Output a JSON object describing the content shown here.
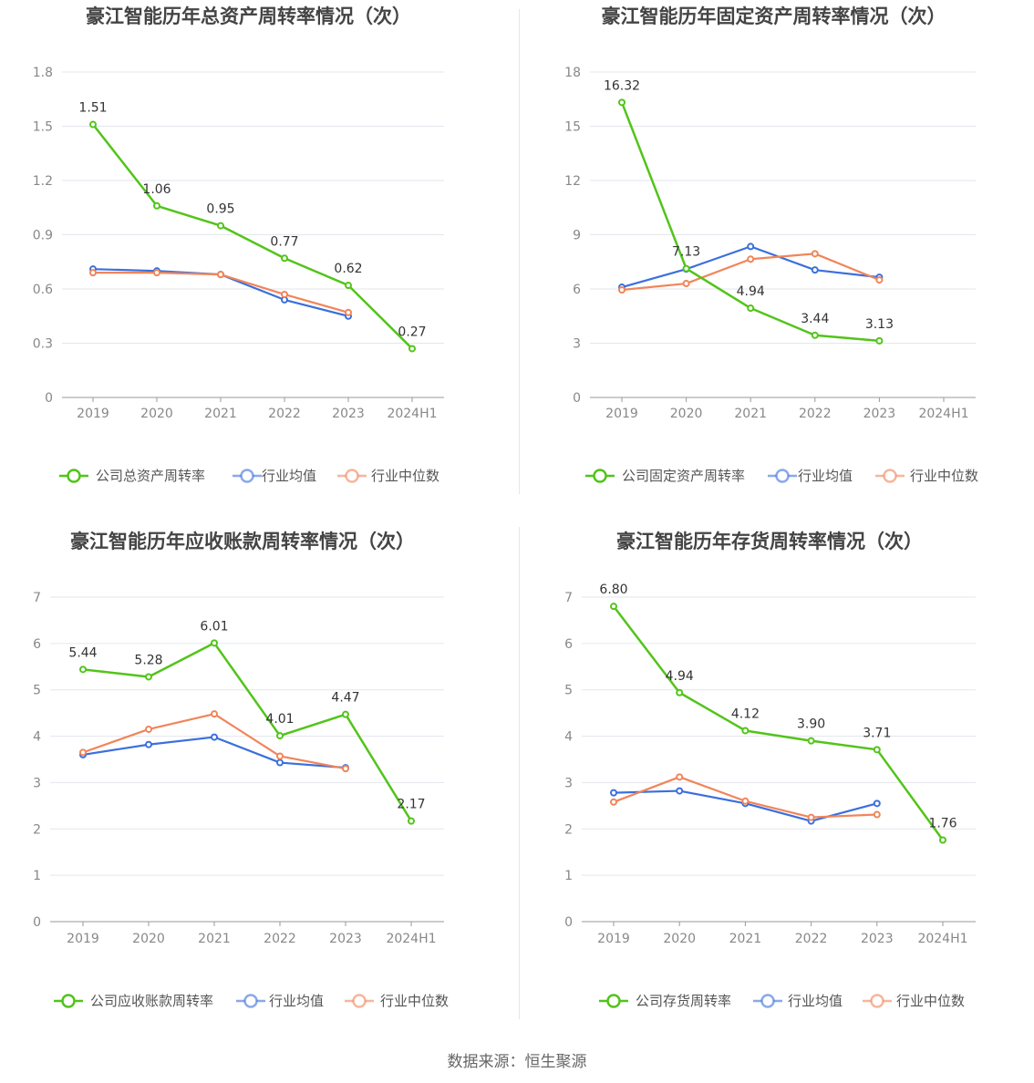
{
  "source_label": "数据来源：恒生聚源",
  "colors": {
    "company": "#52c41a",
    "avg": "#3b6fdc",
    "median": "#f0855a"
  },
  "chart_data": [
    {
      "type": "line",
      "title": "豪江智能历年总资产周转率情况（次）",
      "categories": [
        "2019",
        "2020",
        "2021",
        "2022",
        "2023",
        "2024H1"
      ],
      "ylim": [
        0,
        1.8
      ],
      "yticks": [
        "0",
        "0.3",
        "0.6",
        "0.9",
        "1.2",
        "1.5",
        "1.8"
      ],
      "series": [
        {
          "name": "公司总资产周转率",
          "key": "company",
          "values": [
            1.51,
            1.06,
            0.95,
            0.77,
            0.62,
            0.27
          ],
          "labels": [
            "1.51",
            "1.06",
            "0.95",
            "0.77",
            "0.62",
            "0.27"
          ]
        },
        {
          "name": "行业均值",
          "key": "avg",
          "values": [
            0.71,
            0.7,
            0.68,
            0.54,
            0.45,
            null
          ]
        },
        {
          "name": "行业中位数",
          "key": "median",
          "values": [
            0.69,
            0.69,
            0.68,
            0.57,
            0.47,
            null
          ]
        }
      ]
    },
    {
      "type": "line",
      "title": "豪江智能历年固定资产周转率情况（次）",
      "categories": [
        "2019",
        "2020",
        "2021",
        "2022",
        "2023",
        "2024H1"
      ],
      "ylim": [
        0,
        18
      ],
      "yticks": [
        "0",
        "3",
        "6",
        "9",
        "12",
        "15",
        "18"
      ],
      "series": [
        {
          "name": "公司固定资产周转率",
          "key": "company",
          "values": [
            16.32,
            7.13,
            4.94,
            3.44,
            3.13,
            null
          ],
          "labels": [
            "16.32",
            "7.13",
            "4.94",
            "3.44",
            "3.13",
            ""
          ]
        },
        {
          "name": "行业均值",
          "key": "avg",
          "values": [
            6.1,
            7.1,
            8.35,
            7.05,
            6.65,
            null
          ]
        },
        {
          "name": "行业中位数",
          "key": "median",
          "values": [
            5.95,
            6.3,
            7.65,
            7.95,
            6.5,
            null
          ]
        }
      ]
    },
    {
      "type": "line",
      "title": "豪江智能历年应收账款周转率情况（次）",
      "categories": [
        "2019",
        "2020",
        "2021",
        "2022",
        "2023",
        "2024H1"
      ],
      "ylim": [
        0,
        7
      ],
      "yticks": [
        "0",
        "1",
        "2",
        "3",
        "4",
        "5",
        "6",
        "7"
      ],
      "series": [
        {
          "name": "公司应收账款周转率",
          "key": "company",
          "values": [
            5.44,
            5.28,
            6.01,
            4.01,
            4.47,
            2.17
          ],
          "labels": [
            "5.44",
            "5.28",
            "6.01",
            "4.01",
            "4.47",
            "2.17"
          ]
        },
        {
          "name": "行业均值",
          "key": "avg",
          "values": [
            3.6,
            3.82,
            3.98,
            3.43,
            3.32,
            null
          ]
        },
        {
          "name": "行业中位数",
          "key": "median",
          "values": [
            3.65,
            4.15,
            4.48,
            3.57,
            3.3,
            null
          ]
        }
      ]
    },
    {
      "type": "line",
      "title": "豪江智能历年存货周转率情况（次）",
      "categories": [
        "2019",
        "2020",
        "2021",
        "2022",
        "2023",
        "2024H1"
      ],
      "ylim": [
        0,
        7
      ],
      "yticks": [
        "0",
        "1",
        "2",
        "3",
        "4",
        "5",
        "6",
        "7"
      ],
      "series": [
        {
          "name": "公司存货周转率",
          "key": "company",
          "values": [
            6.8,
            4.94,
            4.12,
            3.9,
            3.71,
            1.76
          ],
          "labels": [
            "6.80",
            "4.94",
            "4.12",
            "3.90",
            "3.71",
            "1.76"
          ]
        },
        {
          "name": "行业均值",
          "key": "avg",
          "values": [
            2.78,
            2.82,
            2.55,
            2.17,
            2.55,
            null
          ]
        },
        {
          "name": "行业中位数",
          "key": "median",
          "values": [
            2.58,
            3.12,
            2.6,
            2.25,
            2.31,
            null
          ]
        }
      ]
    }
  ]
}
